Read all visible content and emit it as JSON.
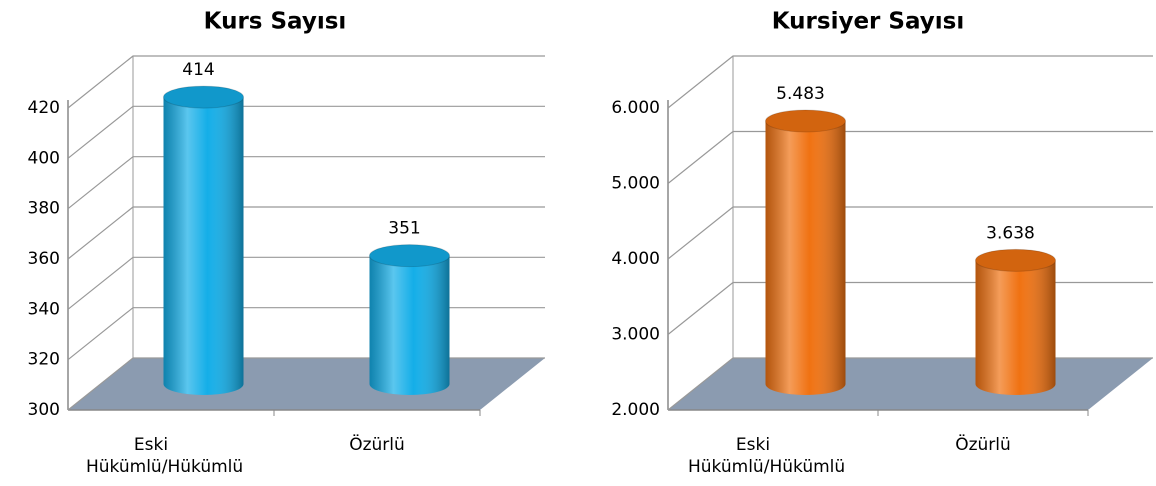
{
  "chart_data": [
    {
      "type": "bar",
      "title": "Kurs Sayısı",
      "categories": [
        "Eski Hükümlü/Hükümlü",
        "Özürlü"
      ],
      "values": [
        414,
        351
      ],
      "color": "#14aee8",
      "ylim": [
        300,
        420
      ],
      "yticks": [
        300,
        320,
        340,
        360,
        380,
        400,
        420
      ],
      "grid": true
    },
    {
      "type": "bar",
      "title": "Kursiyer Sayısı",
      "categories": [
        "Eski Hükümlü/Hükümlü",
        "Özürlü"
      ],
      "values": [
        5483,
        3638
      ],
      "value_labels": [
        "5.483",
        "3.638"
      ],
      "color": "#f07212",
      "ylim": [
        2000,
        6000
      ],
      "yticks": [
        {
          "value": 2000,
          "label": "2.000"
        },
        {
          "value": 3000,
          "label": "3.000"
        },
        {
          "value": 4000,
          "label": "4.000"
        },
        {
          "value": 5000,
          "label": "5.000"
        },
        {
          "value": 6000,
          "label": "6.000"
        }
      ],
      "grid": true
    }
  ]
}
